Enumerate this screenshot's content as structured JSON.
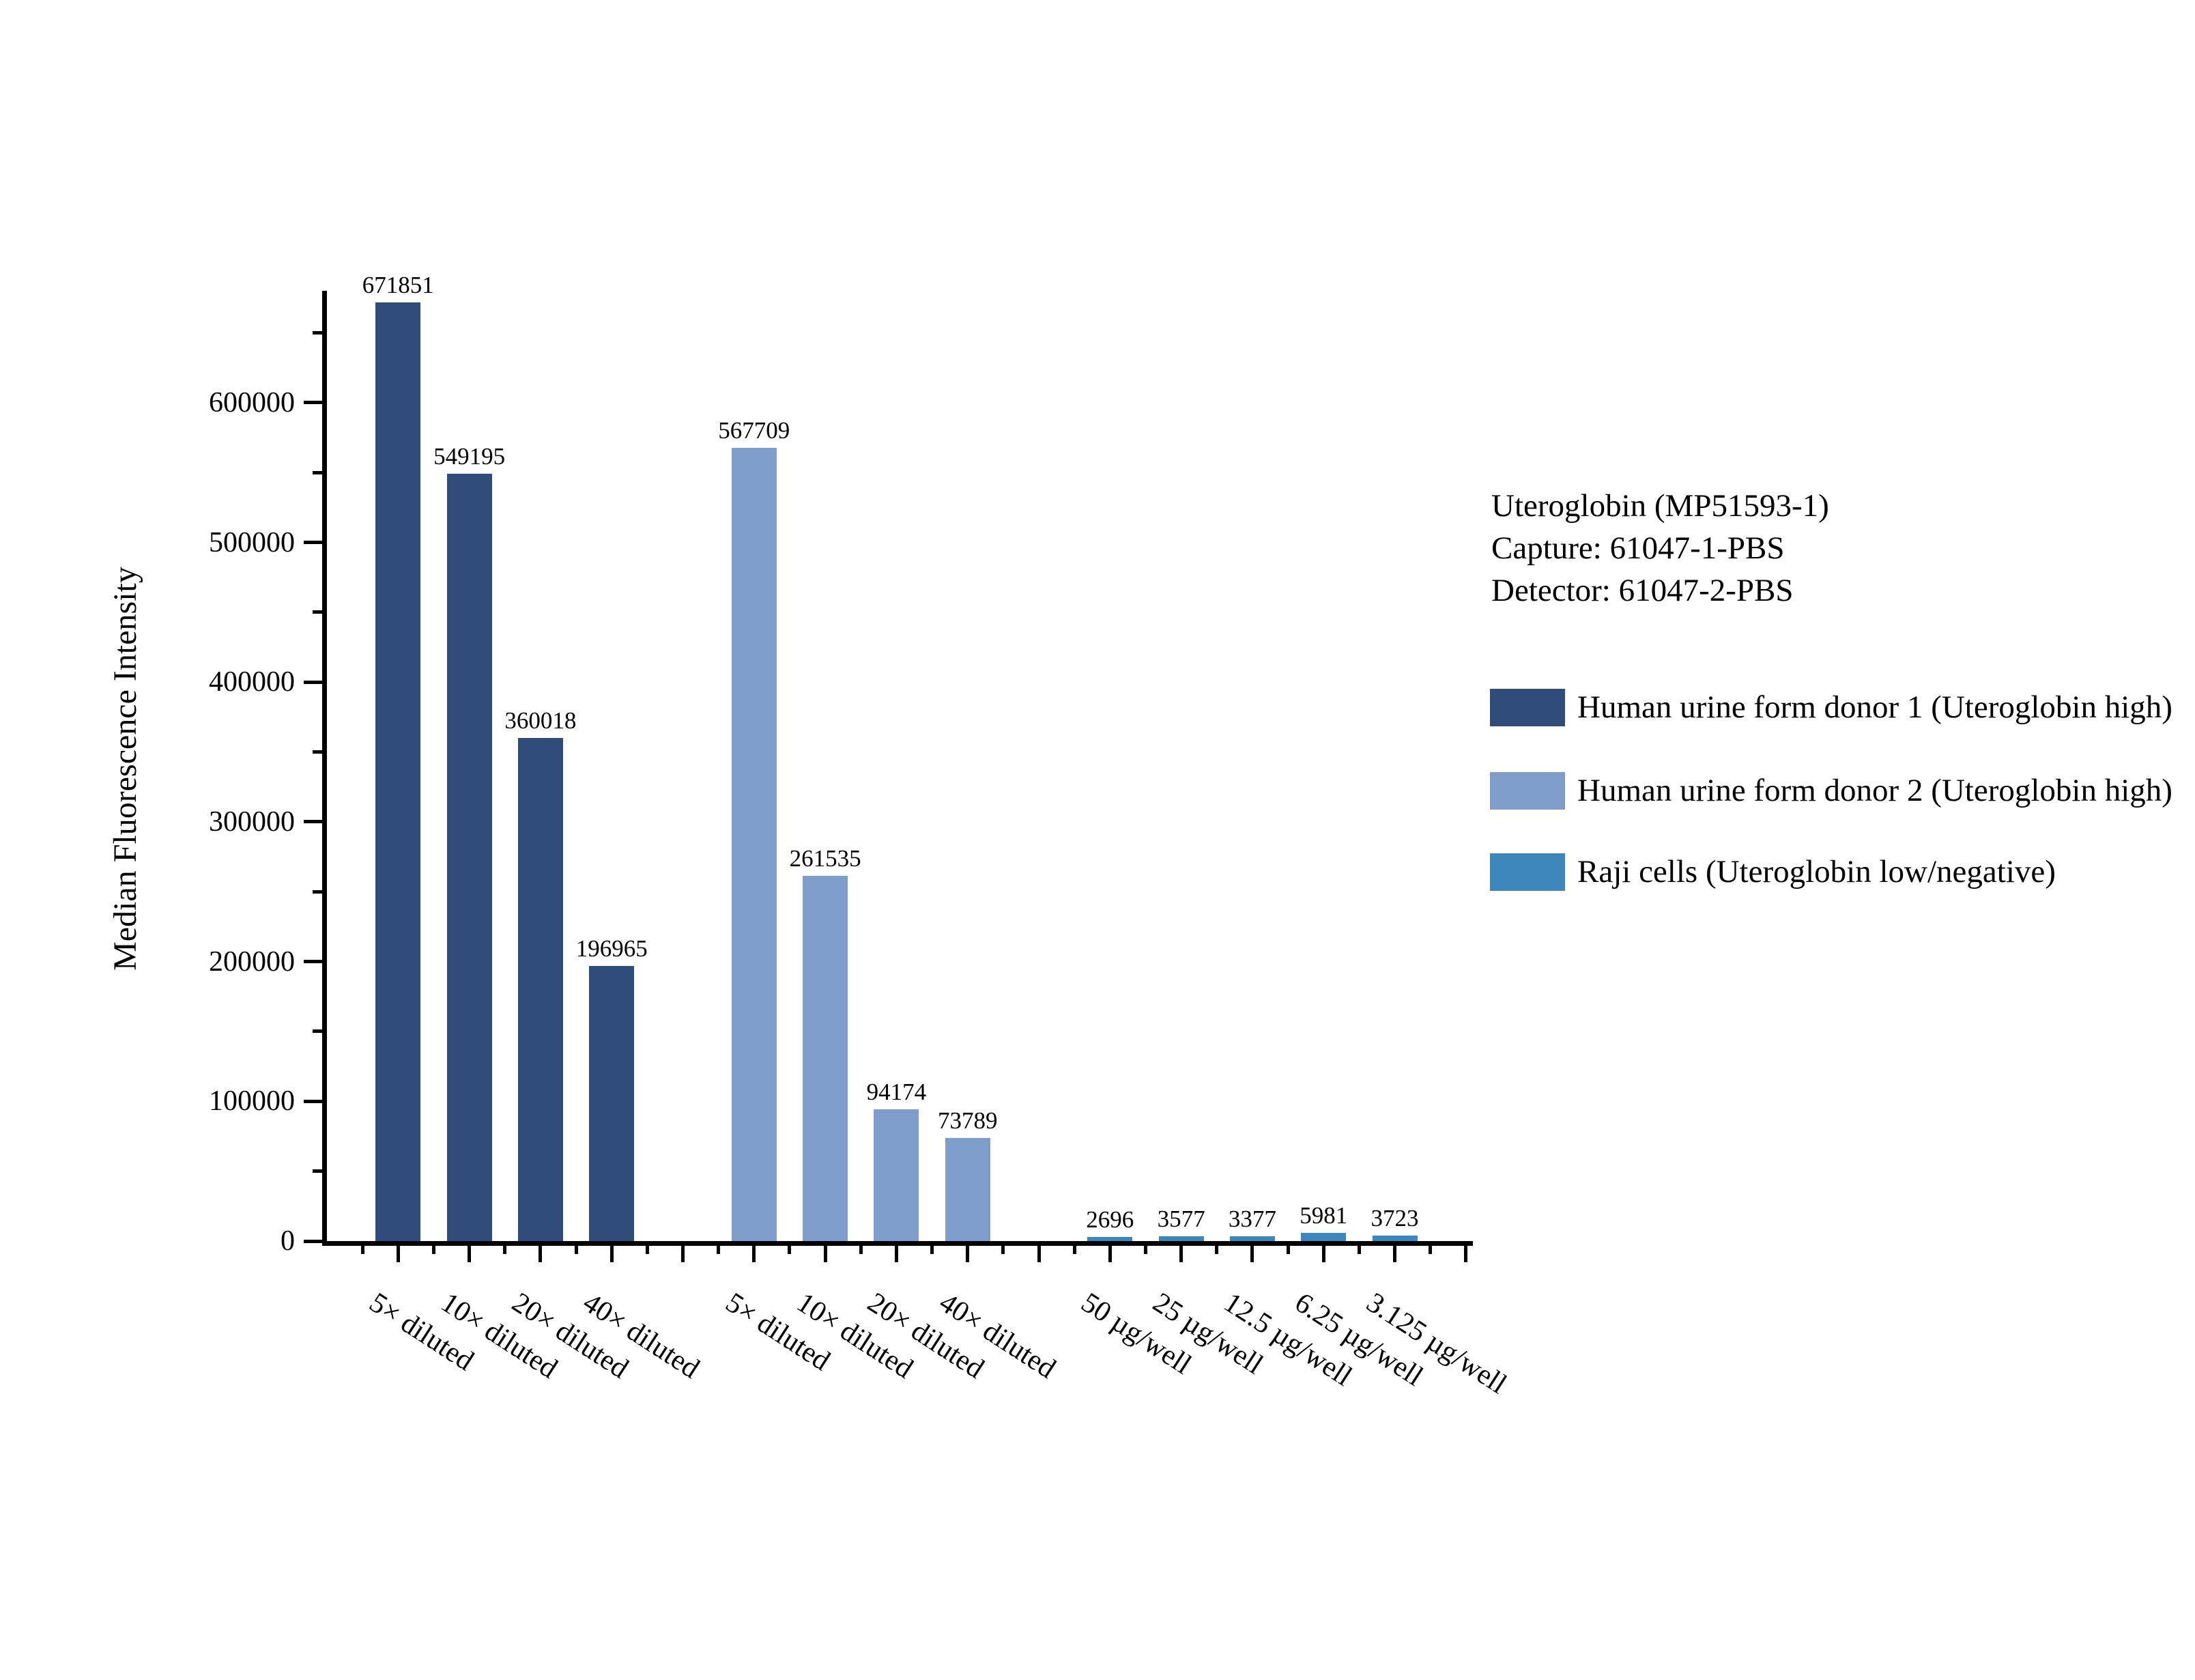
{
  "chart_data": {
    "type": "bar",
    "title": "",
    "xlabel": "",
    "ylabel": "Median Fluorescence Intensity",
    "ylim": [
      0,
      680000
    ],
    "y_major_tick": 100000,
    "y_minor_tick": 50000,
    "grid": false,
    "value_labels": true,
    "legend_position": "right",
    "annotation": [
      "Uteroglobin (MP51593-1)",
      "Capture: 61047-1-PBS",
      "Detector: 61047-2-PBS"
    ],
    "groups": [
      {
        "name": "Human urine form donor 1 (Uteroglobin high)",
        "color": "#2F4C7B",
        "categories": [
          "5× diluted",
          "10× diluted",
          "20× diluted",
          "40× diluted"
        ],
        "values": [
          671851,
          549195,
          360018,
          196965
        ]
      },
      {
        "name": "Human urine form donor 2 (Uteroglobin high)",
        "color": "#7F9DCB",
        "categories": [
          "5× diluted",
          "10× diluted",
          "20× diluted",
          "40× diluted"
        ],
        "values": [
          567709,
          261535,
          94174,
          73789
        ]
      },
      {
        "name": "Raji cells (Uteroglobin low/negative)",
        "color": "#3E87BC",
        "categories": [
          "50 µg/well",
          "25 µg/well",
          "12.5 µg/well",
          "6.25 µg/well",
          "3.125 µg/well"
        ],
        "values": [
          2696,
          3577,
          3377,
          5981,
          3723
        ]
      }
    ]
  }
}
